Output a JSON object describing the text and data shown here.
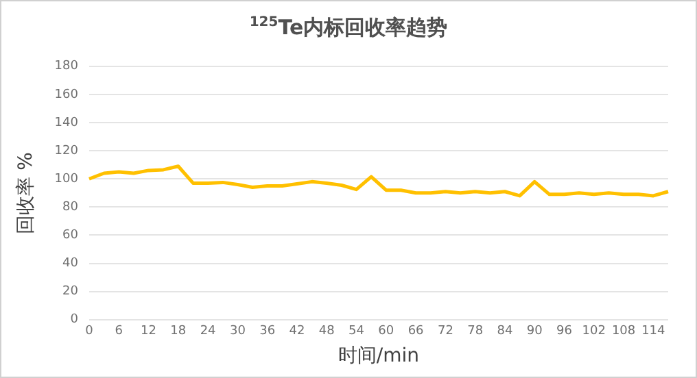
{
  "chart_data": {
    "type": "line",
    "title": "$^{125}$Te内标回收率趋势",
    "xlabel": "时间/min",
    "ylabel": "回收率 %",
    "categories": [
      "0",
      null,
      "6",
      null,
      "12",
      null,
      "18",
      null,
      "24",
      null,
      "30",
      null,
      "36",
      null,
      "42",
      null,
      "48",
      null,
      "54",
      null,
      "60",
      null,
      "66",
      null,
      "72",
      null,
      "78",
      null,
      "84",
      null,
      "90",
      null,
      "96",
      null,
      "102",
      null,
      "108",
      null,
      "114",
      null
    ],
    "series": [
      {
        "color": "#ffc000",
        "values": [
          100,
          104,
          105,
          104,
          106,
          106.5,
          109,
          97,
          97,
          97.5,
          96,
          94,
          95,
          95,
          96.5,
          98,
          97,
          95.5,
          92.5,
          101.5,
          92,
          92,
          90,
          90,
          91,
          90,
          91,
          90,
          91,
          88,
          98,
          89,
          89,
          90,
          89,
          90,
          89,
          89,
          88,
          91
        ]
      }
    ],
    "ylim": [
      0,
      180
    ],
    "yticks": [
      0,
      20,
      40,
      60,
      80,
      100,
      120,
      140,
      160,
      180
    ],
    "grid": "y",
    "legend": false,
    "marker": "none"
  }
}
